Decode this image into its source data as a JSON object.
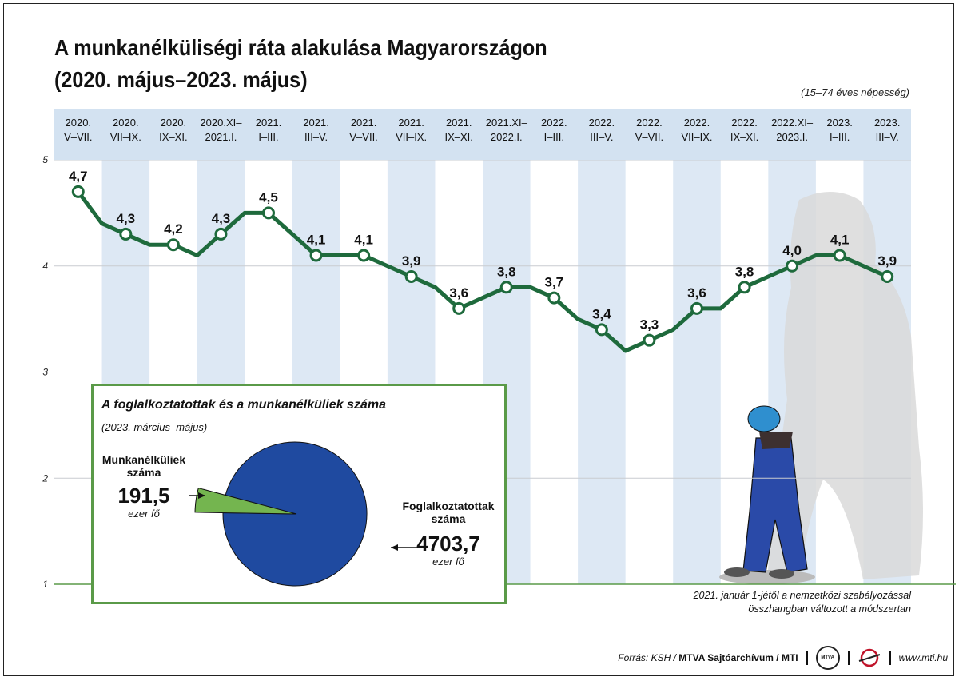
{
  "title_line1": "A munkanélküliségi ráta alakulása Magyarországon",
  "title_line2": "(2020. május–2023. május)",
  "subtitle": "(15–74 éves népesség)",
  "footnote_line1": "2021. január 1-jétől a nemzetközi szabályozással",
  "footnote_line2": "összhangban változott a módszertan",
  "footer": {
    "source_prefix": "Forrás: KSH /",
    "source_bold": "MTVA Sajtóarchívum / MTI",
    "logo1_text": "MTVA",
    "website": "www.mti.hu"
  },
  "colors": {
    "line": "#1e6a3c",
    "stripe": "#dde8f4",
    "header_band": "#d3e2f1",
    "pie_main": "#1f4aa0",
    "pie_slice": "#74b54f",
    "inset_border": "#5a9a48"
  },
  "chart_data": [
    {
      "type": "line",
      "categories": [
        [
          "2020.",
          "V–VII."
        ],
        [
          "2020.",
          "VII–IX."
        ],
        [
          "2020.",
          "IX–XI."
        ],
        [
          "2020.XI–",
          "2021.I."
        ],
        [
          "2021.",
          "I–III."
        ],
        [
          "2021.",
          "III–V."
        ],
        [
          "2021.",
          "V–VII."
        ],
        [
          "2021.",
          "VII–IX."
        ],
        [
          "2021.",
          "IX–XI."
        ],
        [
          "2021.XI–",
          "2022.I."
        ],
        [
          "2022.",
          "I–III."
        ],
        [
          "2022.",
          "III–V."
        ],
        [
          "2022.",
          "V–VII."
        ],
        [
          "2022.",
          "VII–IX."
        ],
        [
          "2022.",
          "IX–XI."
        ],
        [
          "2022.XI–",
          "2023.I."
        ],
        [
          "2023.",
          "I–III."
        ],
        [
          "2023.",
          "III–V."
        ]
      ],
      "values": [
        4.7,
        4.3,
        4.2,
        4.3,
        4.5,
        4.1,
        4.1,
        3.9,
        3.6,
        3.8,
        3.7,
        3.4,
        3.3,
        3.6,
        3.8,
        4.0,
        4.1,
        3.9
      ],
      "value_labels": [
        "4,7",
        "4,3",
        "4,2",
        "4,3",
        "4,5",
        "4,1",
        "4,1",
        "3,9",
        "3,6",
        "3,8",
        "3,7",
        "3,4",
        "3,3",
        "3,6",
        "3,8",
        "4,0",
        "4,1",
        "3,9"
      ],
      "monthly_values": [
        4.7,
        4.4,
        4.3,
        4.2,
        4.2,
        4.1,
        4.3,
        4.5,
        4.5,
        4.3,
        4.1,
        4.1,
        4.1,
        4.0,
        3.9,
        3.8,
        3.6,
        3.7,
        3.8,
        3.8,
        3.7,
        3.5,
        3.4,
        3.2,
        3.3,
        3.4,
        3.6,
        3.6,
        3.8,
        3.9,
        4.0,
        4.1,
        4.1,
        4.0,
        3.9
      ],
      "ylim": [
        1,
        5
      ],
      "yticks": [
        "1",
        "2",
        "3",
        "4",
        "5"
      ],
      "grid": true
    },
    {
      "type": "pie",
      "title": "A foglalkoztatottak és a munkanélküliek száma",
      "subtitle": "(2023. március–május)",
      "slices": [
        {
          "name_line1": "Munkanélküliek",
          "name_line2": "száma",
          "value": 191.5,
          "value_label": "191,5",
          "unit": "ezer fő"
        },
        {
          "name_line1": "Foglalkoztatottak",
          "name_line2": "száma",
          "value": 4703.7,
          "value_label": "4703,7",
          "unit": "ezer fő"
        }
      ]
    }
  ]
}
